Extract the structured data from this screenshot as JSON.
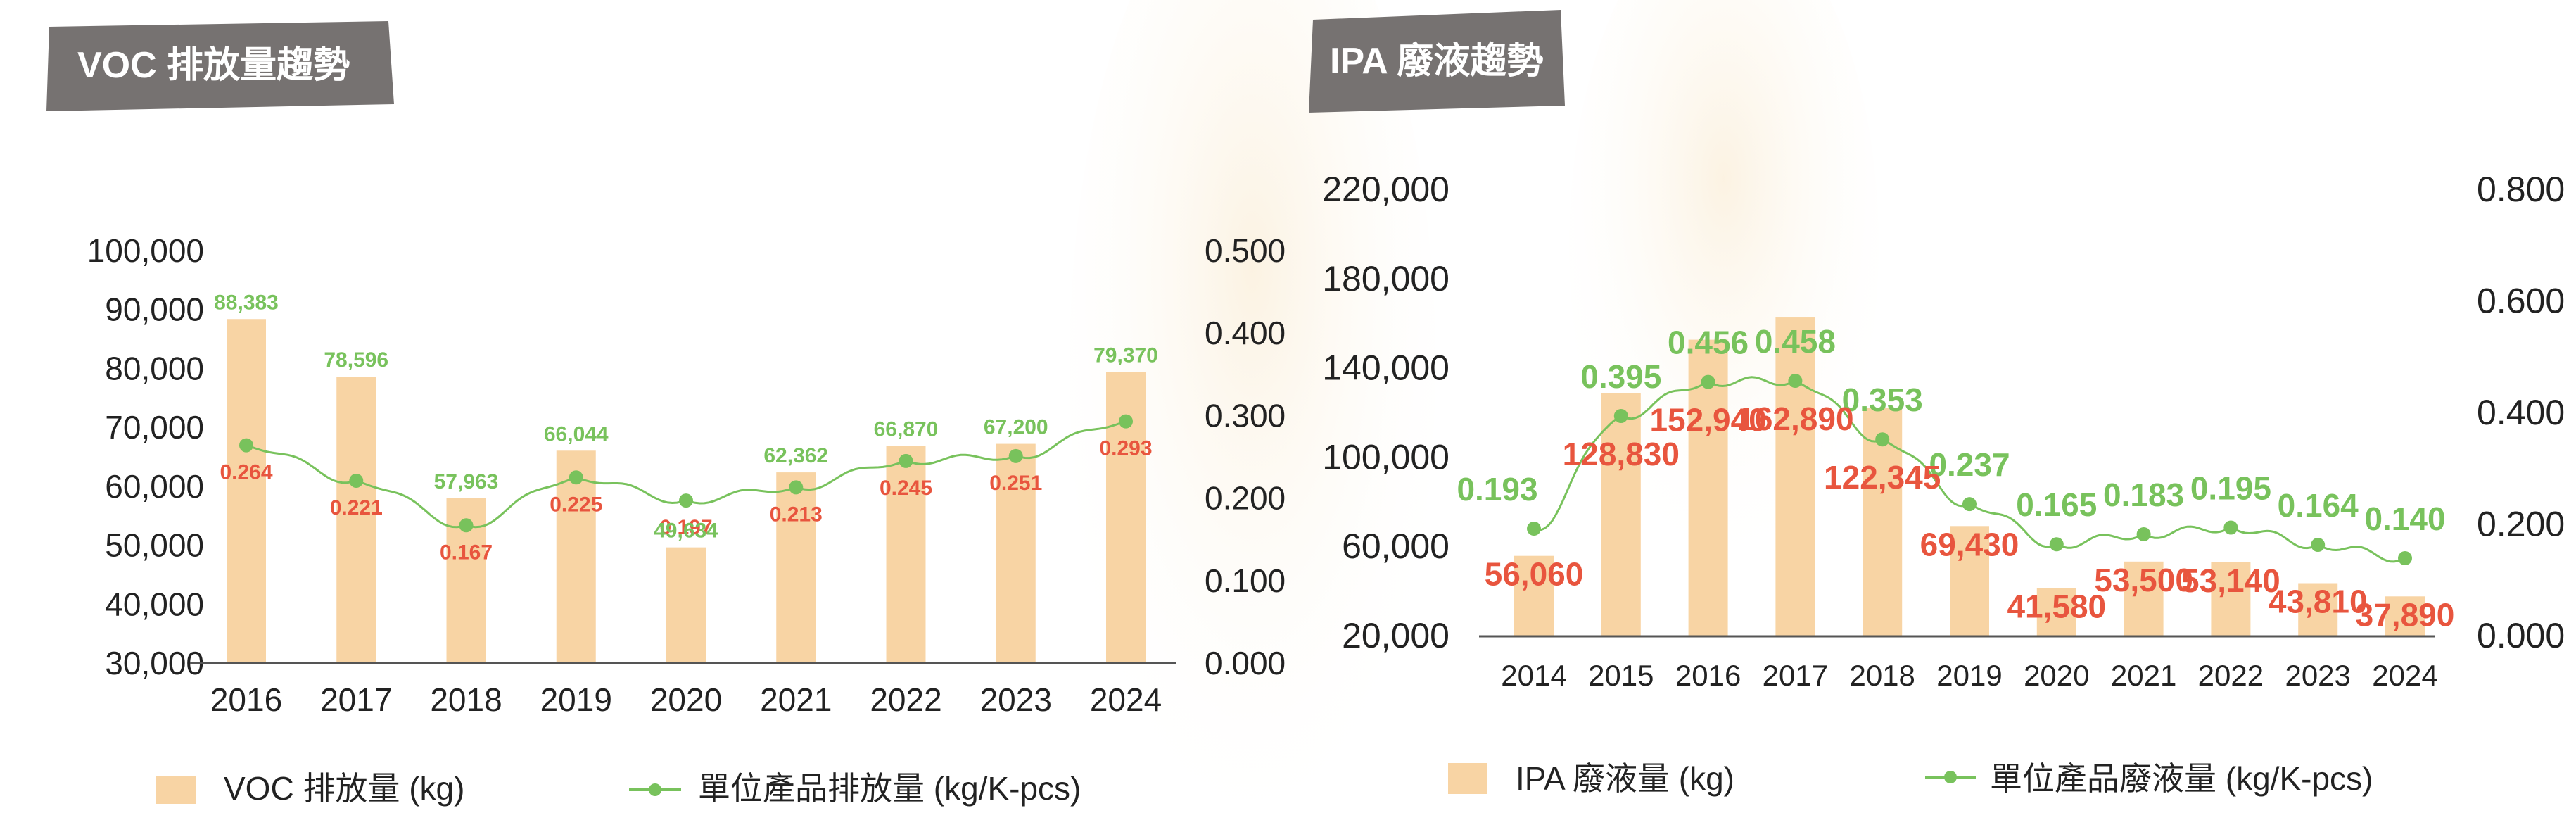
{
  "colors": {
    "bar": "#f8d4a4",
    "line": "#78c25c",
    "bar_label": "#e8553e",
    "line_label": "#78c25c",
    "title_bg": "#767271",
    "title_text": "#ffffff",
    "axis_text": "#222222"
  },
  "chart_data": [
    {
      "type": "bar+line",
      "title": "VOC 排放量趨勢",
      "categories": [
        "2016",
        "2017",
        "2018",
        "2019",
        "2020",
        "2021",
        "2022",
        "2023",
        "2024"
      ],
      "series": [
        {
          "name": "VOC 排放量 (kg)",
          "type": "bar",
          "axis": "left",
          "values": [
            88383,
            78596,
            57963,
            66044,
            49634,
            62362,
            66870,
            67200,
            79370
          ],
          "labels": [
            "88,383",
            "78,596",
            "57,963",
            "66,044",
            "49,634",
            "62,362",
            "66,870",
            "67,200",
            "79,370"
          ]
        },
        {
          "name": "單位產品排放量 (kg/K-pcs)",
          "type": "line",
          "axis": "right",
          "values": [
            0.264,
            0.221,
            0.167,
            0.225,
            0.197,
            0.213,
            0.245,
            0.251,
            0.293
          ],
          "labels": [
            "0.264",
            "0.221",
            "0.167",
            "0.225",
            "0.197",
            "0.213",
            "0.245",
            "0.251",
            "0.293"
          ]
        }
      ],
      "ylim_left": [
        30000,
        100000
      ],
      "ylim_right": [
        0,
        0.5
      ],
      "yticks_left": [
        "30,000",
        "40,000",
        "50,000",
        "60,000",
        "70,000",
        "80,000",
        "90,000",
        "100,000"
      ],
      "yticks_right": [
        "0.000",
        "0.100",
        "0.200",
        "0.300",
        "0.400",
        "0.500"
      ],
      "legend_position": "bottom",
      "grid": false
    },
    {
      "type": "bar+line",
      "title": "IPA 廢液趨勢",
      "categories": [
        "2014",
        "2015",
        "2016",
        "2017",
        "2018",
        "2019",
        "2020",
        "2021",
        "2022",
        "2023",
        "2024"
      ],
      "series": [
        {
          "name": "IPA 廢液量 (kg)",
          "type": "bar",
          "axis": "left",
          "values": [
            56060,
            128830,
            152940,
            162890,
            122345,
            69430,
            41580,
            53500,
            53140,
            43810,
            37890
          ],
          "labels": [
            "56,060",
            "128,830",
            "152,940",
            "162,890",
            "122,345",
            "69,430",
            "41,580",
            "53,500",
            "53,140",
            "43,810",
            "37,890"
          ]
        },
        {
          "name": "單位產品廢液量 (kg/K-pcs)",
          "type": "line",
          "axis": "right",
          "values": [
            0.193,
            0.395,
            0.456,
            0.458,
            0.353,
            0.237,
            0.165,
            0.183,
            0.195,
            0.164,
            0.14
          ],
          "labels": [
            "0.193",
            "0.395",
            "0.456",
            "0.458",
            "0.353",
            "0.237",
            "0.165",
            "0.183",
            "0.195",
            "0.164",
            "0.140"
          ]
        }
      ],
      "ylim_left": [
        20000,
        220000
      ],
      "ylim_right": [
        0,
        0.8
      ],
      "yticks_left": [
        "20,000",
        "60,000",
        "100,000",
        "140,000",
        "180,000",
        "220,000"
      ],
      "yticks_right": [
        "0.000",
        "0.200",
        "0.400",
        "0.600",
        "0.800"
      ],
      "legend_position": "bottom",
      "grid": false
    }
  ]
}
